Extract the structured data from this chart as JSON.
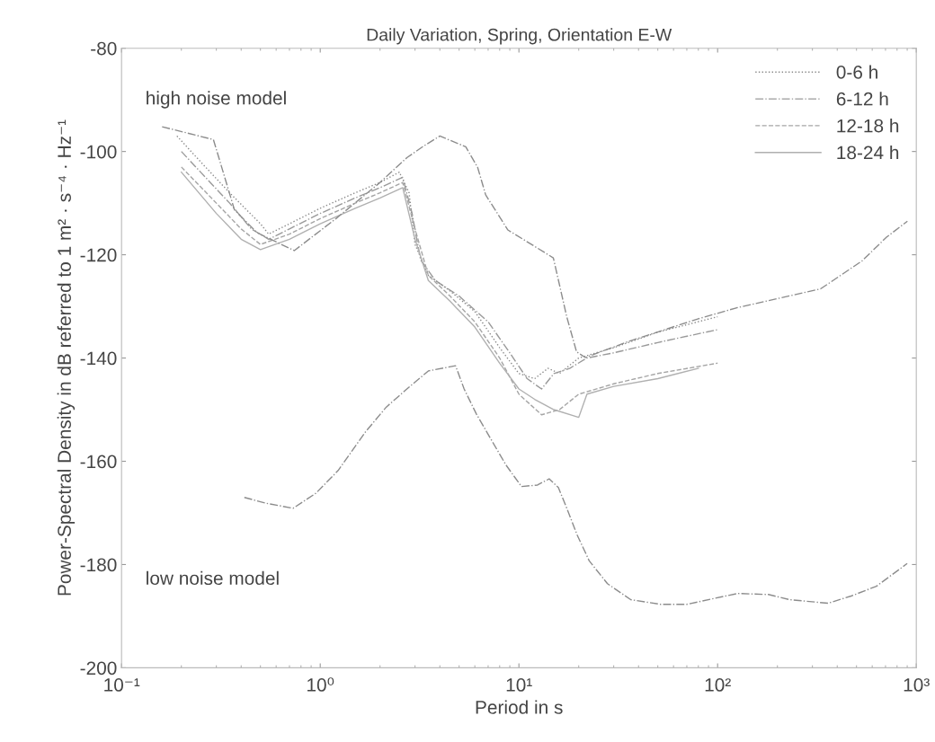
{
  "chart_data": {
    "type": "line",
    "title": "Daily Variation, Spring, Orientation E-W",
    "xlabel": "Period in s",
    "ylabel": "Power-Spectral Density in dB referred to 1 m² · s⁻⁴ · Hz⁻¹",
    "log": "x",
    "xlim": [
      0.1,
      1000
    ],
    "ylim": [
      -200,
      -80
    ],
    "xticks": [
      {
        "value": 0.1,
        "label": "10⁻¹"
      },
      {
        "value": 1,
        "label": "10⁰"
      },
      {
        "value": 10,
        "label": "10¹"
      },
      {
        "value": 100,
        "label": "10²"
      },
      {
        "value": 1000,
        "label": "10³"
      }
    ],
    "yticks": [
      -200,
      -180,
      -160,
      -140,
      -120,
      -100,
      -80
    ],
    "grid": false,
    "legend": "top right",
    "series": [
      {
        "name": "0-6 h",
        "color": "#8a8a8a",
        "line_style": "dotted",
        "x": [
          0.19,
          0.25,
          0.35,
          0.5,
          0.55,
          0.7,
          1.0,
          1.5,
          2.0,
          2.5,
          2.8,
          3.0,
          3.5,
          4.5,
          6,
          8,
          10,
          12,
          14,
          16,
          20,
          30,
          50,
          100
        ],
        "values": [
          -97,
          -102,
          -108,
          -114,
          -116,
          -114,
          -111,
          -108,
          -106,
          -104,
          -108,
          -118,
          -124,
          -127,
          -131,
          -138,
          -143,
          -144,
          -142,
          -143,
          -140,
          -138,
          -135,
          -132
        ]
      },
      {
        "name": "6-12 h",
        "color": "#999999",
        "line_style": "dashdot",
        "x": [
          0.2,
          0.25,
          0.35,
          0.45,
          0.55,
          0.7,
          1.0,
          1.5,
          2.0,
          2.6,
          2.9,
          3.2,
          3.8,
          5,
          7,
          9,
          11,
          13,
          15,
          18,
          22,
          30,
          50,
          100
        ],
        "values": [
          -100,
          -104,
          -110,
          -115,
          -117,
          -115,
          -112,
          -109,
          -107,
          -105,
          -112,
          -121,
          -125,
          -128,
          -133,
          -139,
          -144,
          -146,
          -143,
          -142,
          -140,
          -139,
          -137,
          -134.5
        ]
      },
      {
        "name": "12-18 h",
        "color": "#a5a5a5",
        "line_style": "dashed",
        "x": [
          0.2,
          0.3,
          0.4,
          0.5,
          0.7,
          1.0,
          1.5,
          2.0,
          2.6,
          3.0,
          3.5,
          4.5,
          6,
          8,
          10,
          13,
          16,
          20,
          30,
          50,
          100
        ],
        "values": [
          -103,
          -110,
          -115,
          -118,
          -116,
          -113,
          -110,
          -108,
          -106,
          -115,
          -124,
          -128,
          -133,
          -140,
          -147,
          -151,
          -150,
          -147,
          -145,
          -143,
          -141
        ]
      },
      {
        "name": "18-24 h",
        "color": "#b0b0b0",
        "line_style": "solid",
        "x": [
          0.2,
          0.3,
          0.4,
          0.5,
          0.7,
          1.0,
          1.5,
          2.0,
          2.6,
          3.0,
          3.5,
          4.5,
          6,
          8,
          10,
          12,
          15,
          20,
          22,
          30,
          50,
          80
        ],
        "values": [
          -104,
          -112,
          -117,
          -119,
          -117,
          -114,
          -111,
          -109,
          -107,
          -117,
          -125,
          -129,
          -134,
          -141,
          -146,
          -148,
          -150,
          -151.5,
          -147,
          -145.5,
          -144,
          -142
        ]
      },
      {
        "color": "#8c8c8c",
        "line_style": "dashdot",
        "x": [
          0.16,
          0.29,
          0.37,
          0.48,
          0.74,
          1.2,
          2.0,
          2.73,
          3.27,
          4.0,
          5.4,
          6.2,
          6.8,
          8.8,
          14.9,
          17.4,
          19.5,
          21.6,
          36.2,
          80,
          124,
          330,
          533,
          708,
          902
        ],
        "values": [
          -95.2,
          -97.7,
          -111.3,
          -115.7,
          -119.2,
          -113,
          -106,
          -101.2,
          -99.1,
          -97,
          -99.1,
          -103.1,
          -108.4,
          -115.2,
          -120.6,
          -132,
          -138.8,
          -139.9,
          -136.7,
          -132.4,
          -130.3,
          -126.6,
          -121.2,
          -116.6,
          -113.5
        ]
      },
      {
        "color": "#8c8c8c",
        "line_style": "dashdot",
        "x": [
          0.415,
          0.53,
          0.73,
          0.95,
          1.23,
          1.69,
          2.15,
          2.73,
          3.5,
          4.8,
          5.3,
          6.1,
          7.3,
          8.6,
          10.3,
          12.4,
          14.2,
          15.8,
          17.5,
          19.6,
          22.6,
          27.9,
          36.5,
          51.6,
          70,
          126,
          180,
          230,
          360,
          470,
          630,
          900
        ],
        "values": [
          -167,
          -168.1,
          -169.1,
          -166.2,
          -161.8,
          -154.3,
          -149.5,
          -146,
          -142.5,
          -141.5,
          -146,
          -150.8,
          -156,
          -160.7,
          -164.9,
          -164.6,
          -163.4,
          -165.1,
          -169.3,
          -174.2,
          -179.3,
          -183.7,
          -186.8,
          -187.7,
          -187.7,
          -185.6,
          -185.8,
          -186.8,
          -187.5,
          -186.1,
          -184.2,
          -179.8
        ]
      }
    ],
    "annotations": [
      "high noise model",
      "low noise model"
    ]
  }
}
